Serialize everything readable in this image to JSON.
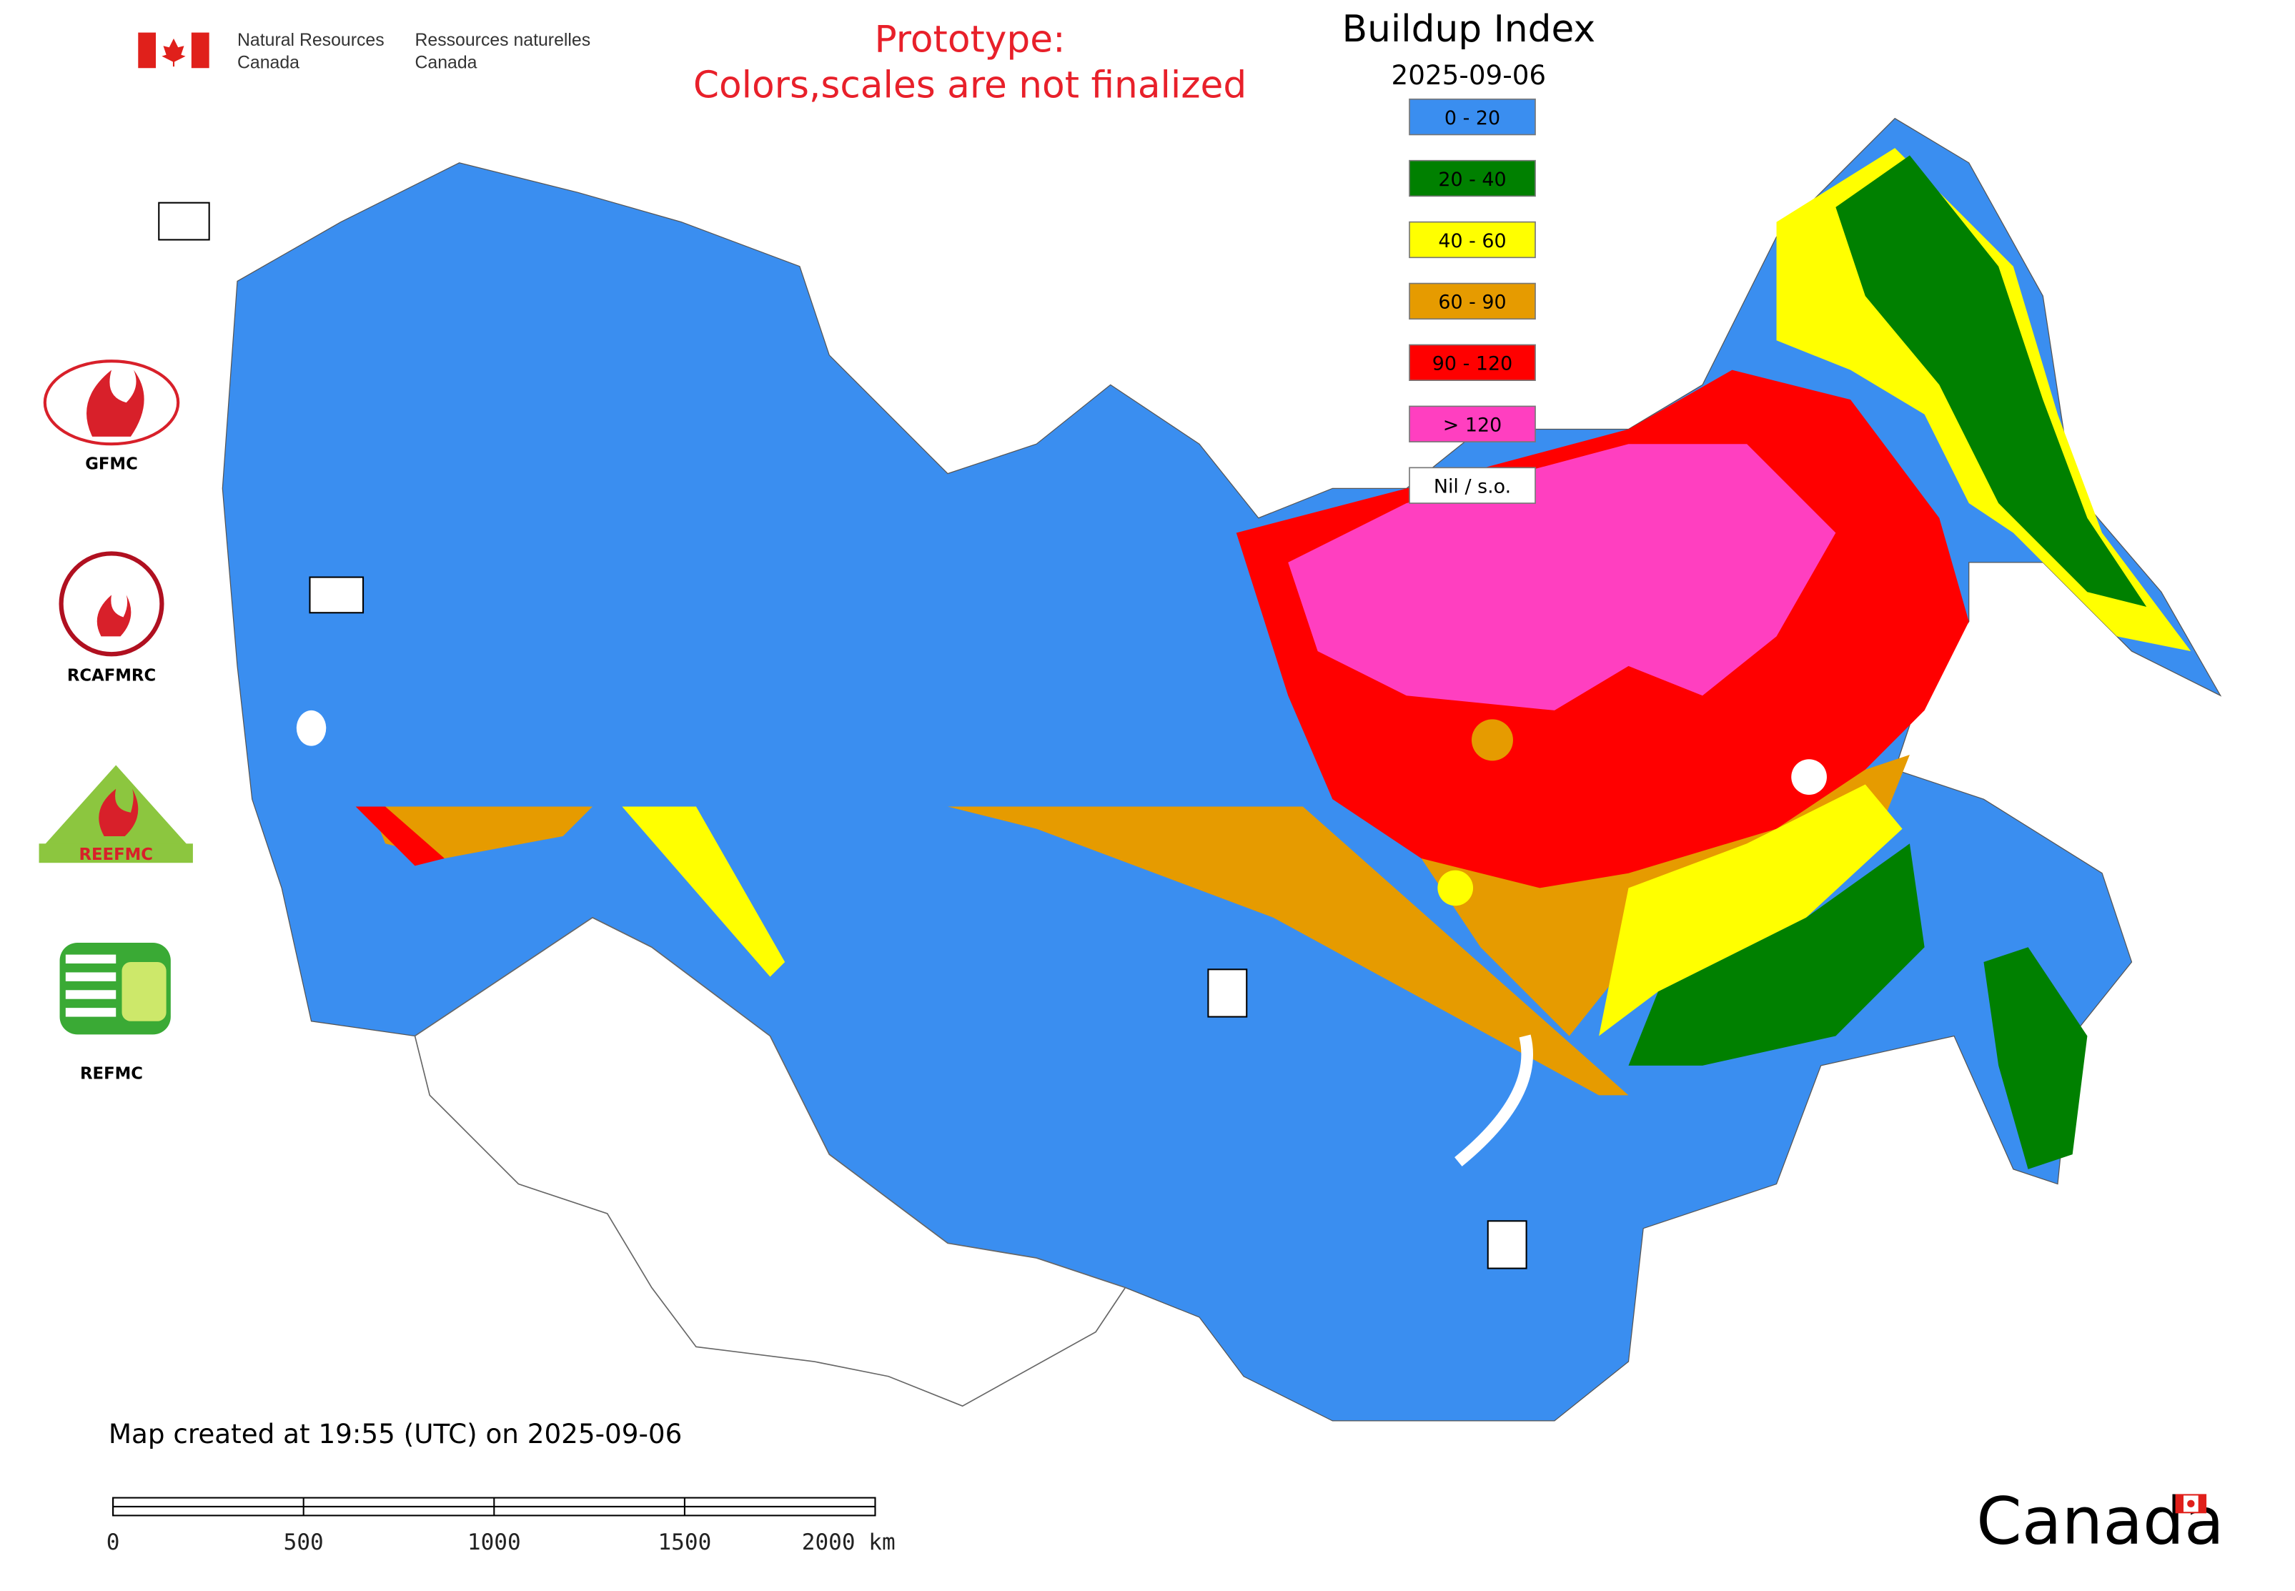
{
  "header": {
    "department_en": [
      "Natural Resources",
      "Canada"
    ],
    "department_fr": [
      "Ressources naturelles",
      "Canada"
    ],
    "notice": [
      "Prototype:",
      "Colors,scales are not finalized"
    ]
  },
  "legend": {
    "title": "Buildup Index",
    "date": "2025-09-06",
    "items": [
      {
        "label": "0 - 20",
        "color": "#3a8ef0"
      },
      {
        "label": "20 - 40",
        "color": "#008000"
      },
      {
        "label": "40 - 60",
        "color": "#ffff00"
      },
      {
        "label": "60 - 90",
        "color": "#e69b00"
      },
      {
        "label": "90 - 120",
        "color": "#ff0000"
      },
      {
        "label": "> 120",
        "color": "#ff3fc0"
      },
      {
        "label": "Nil / s.o.",
        "color": "#ffffff"
      }
    ]
  },
  "logos": [
    {
      "label": "GFMC"
    },
    {
      "label": "RCAFMRC"
    },
    {
      "label": "REEFMC"
    },
    {
      "label": "REFMC"
    }
  ],
  "timestamp": "Map created at 19:55 (UTC) on 2025-09-06",
  "scale_bar": {
    "labels": [
      "0",
      "500",
      "1000",
      "1500",
      "2000 km"
    ]
  },
  "wordmark": "Canada"
}
